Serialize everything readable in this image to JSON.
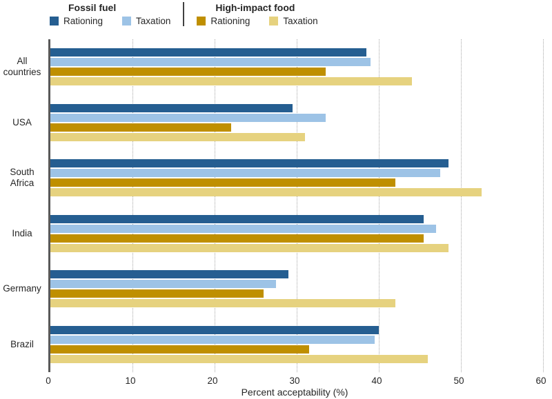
{
  "legend": {
    "groups": [
      {
        "title": "Fossil fuel",
        "items": [
          {
            "label": "Rationing",
            "series": 0
          },
          {
            "label": "Taxation",
            "series": 1
          }
        ]
      },
      {
        "title": "High-impact food",
        "items": [
          {
            "label": "Rationing",
            "series": 2
          },
          {
            "label": "Taxation",
            "series": 3
          }
        ]
      }
    ]
  },
  "axis": {
    "xlabel": "Percent acceptability (%)"
  },
  "colors": {
    "axis_line": "#595959",
    "gridline": "#a6a6a6",
    "text": "#262626",
    "fossil_rationing": "#255e91",
    "fossil_taxation": "#9dc3e6",
    "food_rationing": "#bf8f00",
    "food_taxation": "#e6d27f"
  },
  "chart_data": {
    "type": "bar",
    "orientation": "horizontal",
    "title": "",
    "xlabel": "Percent acceptability (%)",
    "ylabel": "",
    "xlim": [
      0,
      60
    ],
    "xticks": [
      0,
      10,
      20,
      30,
      40,
      50,
      60
    ],
    "grid": "dotted-vertical",
    "legend_position": "top",
    "categories": [
      "All countries",
      "USA",
      "South Africa",
      "India",
      "Germany",
      "Brazil"
    ],
    "series": [
      {
        "name": "Fossil fuel Rationing",
        "color": "#255e91",
        "values": [
          38.5,
          29.5,
          48.5,
          45.5,
          29,
          40
        ]
      },
      {
        "name": "Fossil fuel Taxation",
        "color": "#9dc3e6",
        "values": [
          39,
          33.5,
          47.5,
          47,
          27.5,
          39.5
        ]
      },
      {
        "name": "High-impact food Rationing",
        "color": "#bf8f00",
        "values": [
          33.5,
          22,
          42,
          45.5,
          26,
          31.5
        ]
      },
      {
        "name": "High-impact food Taxation",
        "color": "#e6d27f",
        "values": [
          44,
          31,
          52.5,
          48.5,
          42,
          46
        ]
      }
    ]
  }
}
